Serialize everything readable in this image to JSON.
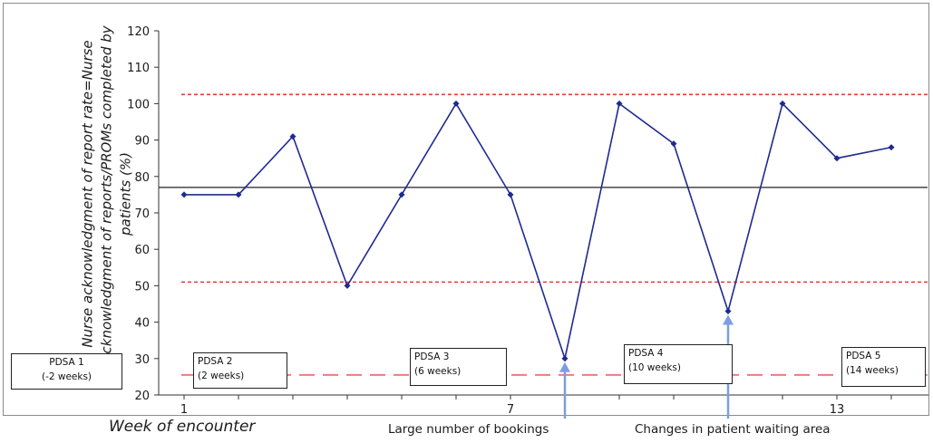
{
  "chart_data": {
    "type": "line",
    "title": "",
    "xlabel": "Week of encounter",
    "ylabel": "Nurse acknowledgment of report rate=Nurse acknowledgment of reports/PROMs completed by patients (%)",
    "ylim": [
      20,
      120
    ],
    "yticks": [
      20,
      30,
      40,
      50,
      60,
      70,
      80,
      90,
      100,
      110,
      120
    ],
    "xlim": [
      1,
      15
    ],
    "xtick_labels": [
      {
        "x": 1,
        "label": "1"
      },
      {
        "x": 7,
        "label": "7"
      },
      {
        "x": 13,
        "label": "13"
      }
    ],
    "grid": false,
    "series": [
      {
        "color": "#1f2a8f",
        "x": [
          1,
          2,
          3,
          4,
          5,
          6,
          7,
          8,
          9,
          10,
          11,
          12,
          13,
          14,
          15
        ],
        "values": [
          75,
          75,
          91,
          50,
          75,
          100,
          75,
          30,
          100,
          89,
          43,
          100,
          85,
          88,
          null
        ]
      }
    ],
    "reference_lines": [
      {
        "kind": "center",
        "value": 77,
        "color": "#555555",
        "style": "solid"
      },
      {
        "kind": "upper",
        "value": 102.5,
        "color": "#e23b3b",
        "style": "dotted"
      },
      {
        "kind": "lower",
        "value": 51,
        "color": "#e23b3b",
        "style": "dotted"
      },
      {
        "kind": "target",
        "value": 25.5,
        "color": "#ee7b7b",
        "style": "dashed"
      }
    ],
    "phases": [
      {
        "line1": "PDSA 1",
        "line2": "(-2 weeks)"
      },
      {
        "line1": "PDSA 2",
        "line2": "(2 weeks)"
      },
      {
        "line1": "PDSA 3",
        "line2": "(6 weeks)"
      },
      {
        "line1": "PDSA 4",
        "line2": "(10 weeks)"
      },
      {
        "line1": "PDSA 5",
        "line2": "(14 weeks)"
      }
    ],
    "annotations": [
      {
        "text": "Large number of bookings",
        "x": 8,
        "y": 30
      },
      {
        "text": "Changes in patient waiting area",
        "x": 11,
        "y": 43
      }
    ]
  }
}
